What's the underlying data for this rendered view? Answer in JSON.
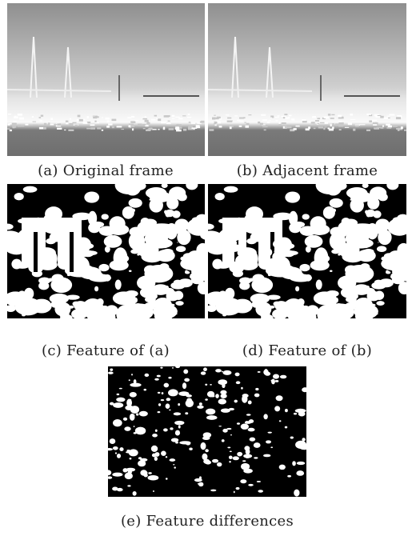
{
  "figure": {
    "panels": [
      {
        "caption": "(a) Original frame"
      },
      {
        "caption": "(b) Adjacent frame"
      },
      {
        "caption": "(c) Feature of (a)"
      },
      {
        "caption": "(d) Feature of (b)"
      },
      {
        "caption": "(e)  Feature differences"
      }
    ]
  }
}
